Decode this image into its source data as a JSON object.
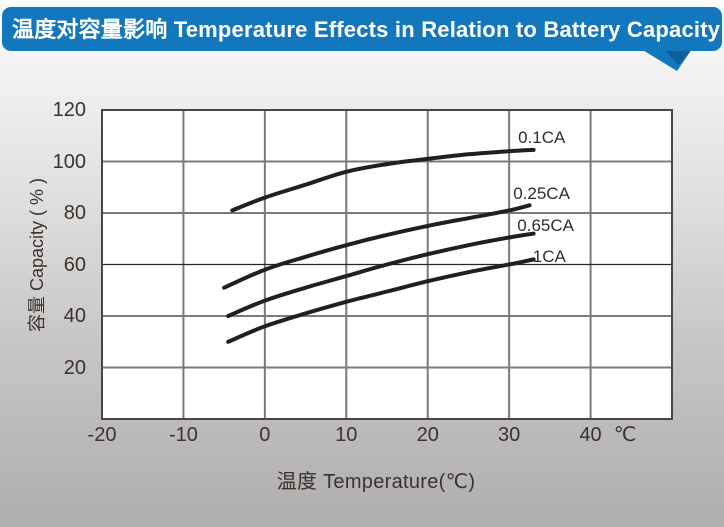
{
  "banner": {
    "title": "温度对容量影响 Temperature Effects in Relation to Battery Capacity",
    "bg_color": "#1377BE",
    "shadow_color": "#0E5F9A",
    "text_color": "#FFFFFF"
  },
  "chart_data": {
    "type": "line",
    "title": "",
    "xlabel": "温度  Temperature(℃)",
    "ylabel": "容量 Capacity ( % )",
    "x_unit": "℃",
    "xlim": [
      -20,
      50
    ],
    "ylim": [
      0,
      120
    ],
    "x_ticks": [
      -20,
      -10,
      0,
      10,
      20,
      30,
      40
    ],
    "y_ticks": [
      120,
      100,
      80,
      60,
      40,
      20
    ],
    "grid": true,
    "legend_position": "inline-labels-right-of-curves",
    "plot_bg": "#FFFFFF",
    "line_color": "#241E1C",
    "grid_color": "#7E7878",
    "thin_grid_value": 60,
    "thin_grid_color": "#2B2523",
    "border_color": "#4A4442",
    "series": [
      {
        "name": "0.1CA",
        "label_at": [
          31.1,
          109
        ],
        "points": [
          [
            -4,
            81
          ],
          [
            0,
            86
          ],
          [
            5,
            91
          ],
          [
            10,
            96
          ],
          [
            15,
            99
          ],
          [
            20,
            101
          ],
          [
            25,
            102.8
          ],
          [
            30,
            104
          ],
          [
            33,
            104.5
          ]
        ]
      },
      {
        "name": "0.25CA",
        "label_at": [
          30.5,
          87.5
        ],
        "points": [
          [
            -5,
            51
          ],
          [
            0,
            58
          ],
          [
            5,
            63
          ],
          [
            10,
            67.5
          ],
          [
            15,
            71.5
          ],
          [
            20,
            75
          ],
          [
            25,
            78
          ],
          [
            30,
            81
          ],
          [
            32.5,
            83
          ]
        ]
      },
      {
        "name": "0.65CA",
        "label_at": [
          31.0,
          75
        ],
        "points": [
          [
            -4.5,
            40
          ],
          [
            0,
            46
          ],
          [
            5,
            51
          ],
          [
            10,
            55.5
          ],
          [
            15,
            60
          ],
          [
            20,
            64
          ],
          [
            25,
            67.5
          ],
          [
            30,
            70.5
          ],
          [
            33,
            72
          ]
        ]
      },
      {
        "name": "1CA",
        "label_at": [
          32.9,
          62.8
        ],
        "points": [
          [
            -4.5,
            30
          ],
          [
            0,
            36
          ],
          [
            5,
            41
          ],
          [
            10,
            45.5
          ],
          [
            15,
            49.5
          ],
          [
            20,
            53.5
          ],
          [
            25,
            57
          ],
          [
            30,
            60
          ],
          [
            33,
            62
          ]
        ]
      }
    ]
  }
}
